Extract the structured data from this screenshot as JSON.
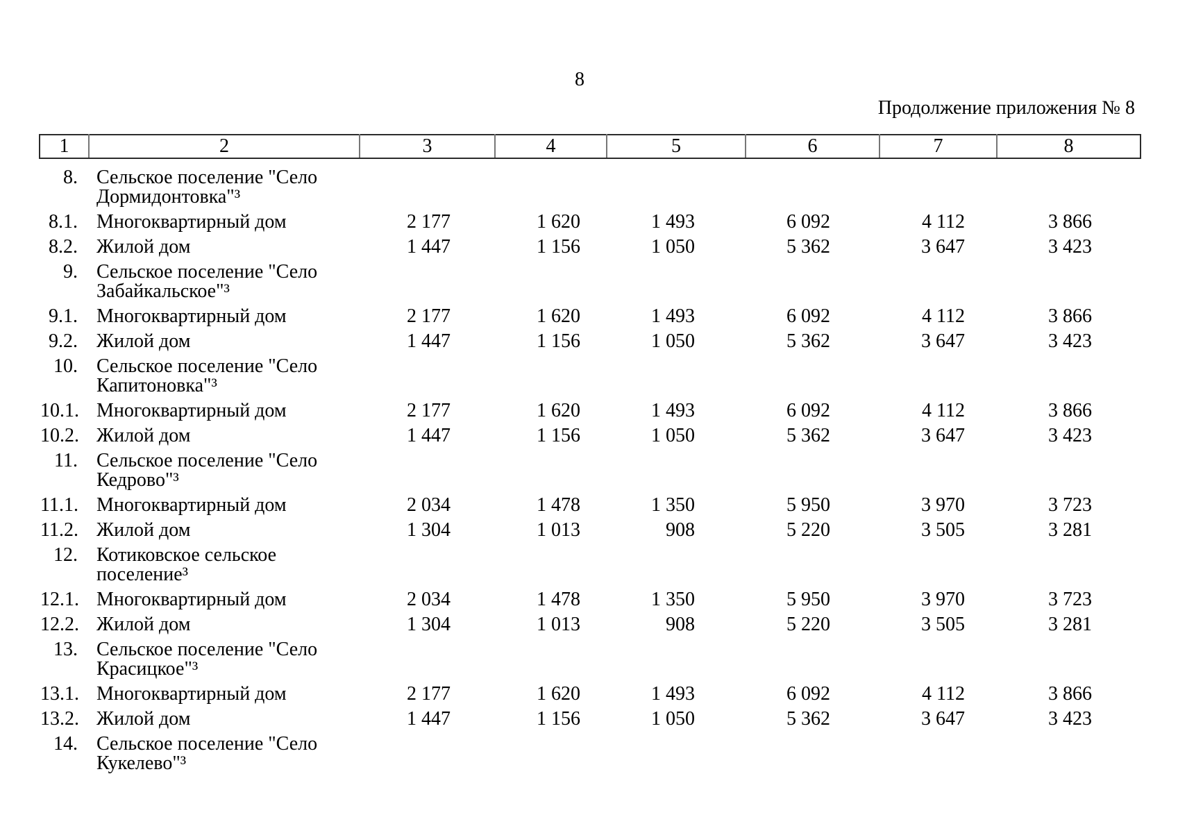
{
  "page": {
    "number": "8",
    "continuation": "Продолжение приложения № 8"
  },
  "table": {
    "column_numbers": [
      "1",
      "2",
      "3",
      "4",
      "5",
      "6",
      "7",
      "8"
    ],
    "rows": [
      {
        "num": "8.",
        "name": "Сельское поселение \"Село\nДормидонтовка\"³",
        "values": []
      },
      {
        "num": "8.1.",
        "name": "Многоквартирный дом",
        "values": [
          "2 177",
          "1 620",
          "1 493",
          "6 092",
          "4 112",
          "3 866"
        ]
      },
      {
        "num": "8.2.",
        "name": "Жилой дом",
        "values": [
          "1 447",
          "1 156",
          "1 050",
          "5 362",
          "3 647",
          "3 423"
        ]
      },
      {
        "num": "9.",
        "name": "Сельское поселение \"Село\nЗабайкальское\"³",
        "values": []
      },
      {
        "num": "9.1.",
        "name": "Многоквартирный дом",
        "values": [
          "2 177",
          "1 620",
          "1 493",
          "6 092",
          "4 112",
          "3 866"
        ]
      },
      {
        "num": "9.2.",
        "name": "Жилой дом",
        "values": [
          "1 447",
          "1 156",
          "1 050",
          "5 362",
          "3 647",
          "3 423"
        ]
      },
      {
        "num": "10.",
        "name": "Сельское поселение \"Село\nКапитоновка\"³",
        "values": []
      },
      {
        "num": "10.1.",
        "name": "Многоквартирный дом",
        "values": [
          "2 177",
          "1 620",
          "1 493",
          "6 092",
          "4 112",
          "3 866"
        ]
      },
      {
        "num": "10.2.",
        "name": "Жилой дом",
        "values": [
          "1 447",
          "1 156",
          "1 050",
          "5 362",
          "3 647",
          "3 423"
        ]
      },
      {
        "num": "11.",
        "name": "Сельское поселение \"Село\nКедрово\"³",
        "values": []
      },
      {
        "num": "11.1.",
        "name": "Многоквартирный дом",
        "values": [
          "2 034",
          "1 478",
          "1 350",
          "5 950",
          "3 970",
          "3 723"
        ]
      },
      {
        "num": "11.2.",
        "name": "Жилой дом",
        "values": [
          "1 304",
          "1 013",
          "908",
          "5 220",
          "3 505",
          "3 281"
        ]
      },
      {
        "num": "12.",
        "name": "Котиковское сельское\nпоселение³",
        "values": []
      },
      {
        "num": "12.1.",
        "name": "Многоквартирный дом",
        "values": [
          "2 034",
          "1 478",
          "1 350",
          "5 950",
          "3 970",
          "3 723"
        ]
      },
      {
        "num": "12.2.",
        "name": "Жилой дом",
        "values": [
          "1 304",
          "1 013",
          "908",
          "5 220",
          "3 505",
          "3 281"
        ]
      },
      {
        "num": "13.",
        "name": "Сельское поселение \"Село\nКрасицкое\"³",
        "values": []
      },
      {
        "num": "13.1.",
        "name": "Многоквартирный дом",
        "values": [
          "2 177",
          "1 620",
          "1 493",
          "6 092",
          "4 112",
          "3 866"
        ]
      },
      {
        "num": "13.2.",
        "name": "Жилой дом",
        "values": [
          "1 447",
          "1 156",
          "1 050",
          "5 362",
          "3 647",
          "3 423"
        ]
      },
      {
        "num": "14.",
        "name": "Сельское поселение \"Село\nКукелево\"³",
        "values": []
      }
    ]
  }
}
